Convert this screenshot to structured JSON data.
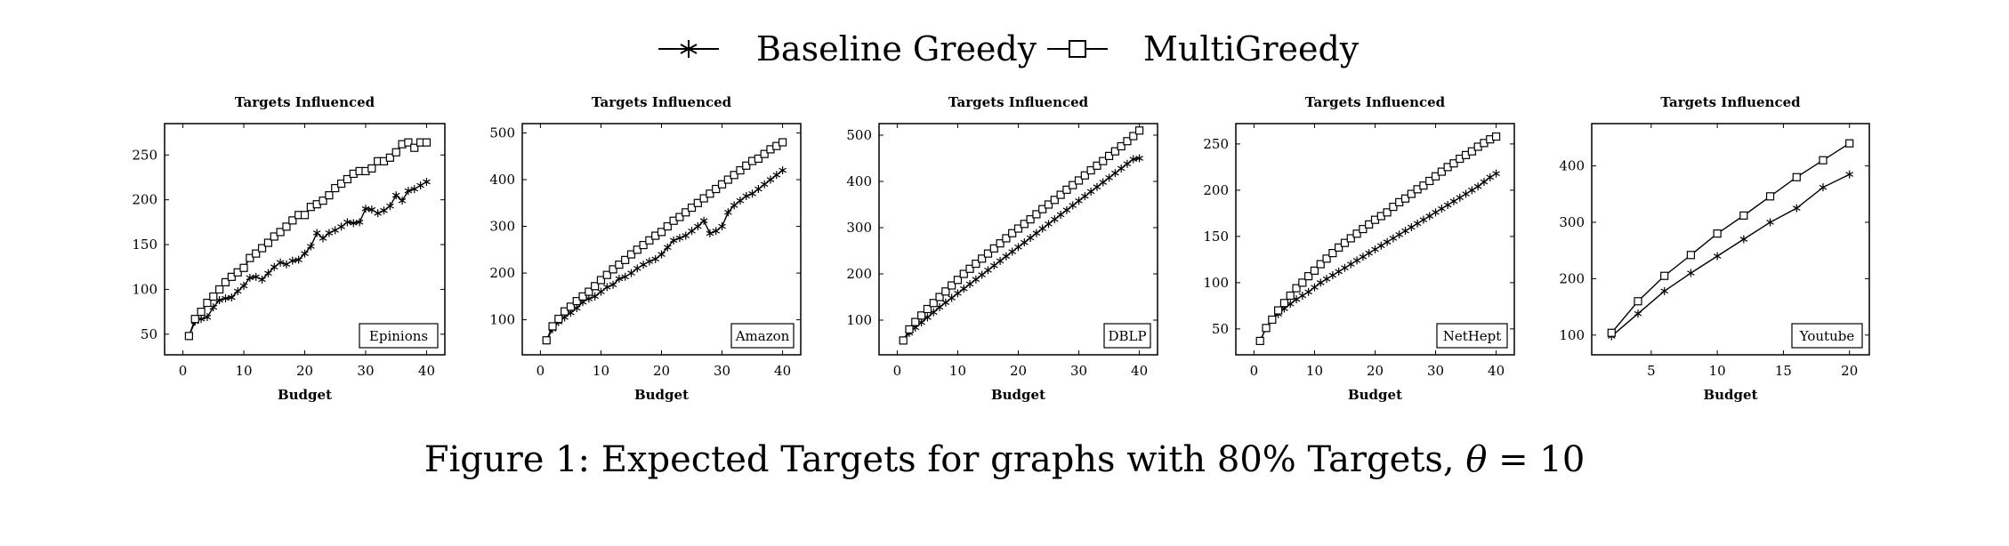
{
  "legend": {
    "entries": [
      {
        "label": "Baseline Greedy",
        "marker": "star"
      },
      {
        "label": "MultiGreedy",
        "marker": "square"
      }
    ]
  },
  "caption": {
    "prefix": "Figure 1: Expected Targets for graphs with 80% Targets, ",
    "symbol": "θ",
    "suffix": " = 10"
  },
  "chart_data": [
    {
      "type": "line",
      "title": "Targets Influenced",
      "xlabel": "Budget",
      "ylabel": "",
      "box_label": "Epinions",
      "xlim": [
        -3,
        43
      ],
      "ylim": [
        27,
        285
      ],
      "xticks": [
        0,
        10,
        20,
        30,
        40
      ],
      "yticks": [
        50,
        100,
        150,
        200,
        250
      ],
      "grid": false,
      "x": [
        1,
        2,
        3,
        4,
        5,
        6,
        7,
        8,
        9,
        10,
        11,
        12,
        13,
        14,
        15,
        16,
        17,
        18,
        19,
        20,
        21,
        22,
        23,
        24,
        25,
        26,
        27,
        28,
        29,
        30,
        31,
        32,
        33,
        34,
        35,
        36,
        37,
        38,
        39,
        40
      ],
      "series": [
        {
          "name": "Baseline Greedy",
          "marker": "star",
          "values": [
            48,
            64,
            67,
            69,
            80,
            88,
            90,
            91,
            98,
            104,
            113,
            114,
            111,
            118,
            125,
            130,
            128,
            132,
            133,
            140,
            148,
            163,
            157,
            163,
            166,
            170,
            175,
            174,
            175,
            190,
            189,
            185,
            188,
            193,
            205,
            199,
            210,
            212,
            216,
            220
          ]
        },
        {
          "name": "MultiGreedy",
          "marker": "square",
          "values": [
            48,
            67,
            75,
            85,
            92,
            100,
            108,
            114,
            119,
            124,
            135,
            140,
            146,
            152,
            159,
            164,
            170,
            177,
            183,
            183,
            192,
            195,
            199,
            205,
            213,
            218,
            223,
            229,
            232,
            232,
            235,
            243,
            243,
            247,
            253,
            262,
            264,
            258,
            264,
            264
          ]
        }
      ]
    },
    {
      "type": "line",
      "title": "Targets Influenced",
      "xlabel": "Budget",
      "ylabel": "",
      "box_label": "Amazon",
      "xlim": [
        -3,
        43
      ],
      "ylim": [
        25,
        520
      ],
      "xticks": [
        0,
        10,
        20,
        30,
        40
      ],
      "yticks": [
        100,
        200,
        300,
        400,
        500
      ],
      "grid": false,
      "x": [
        1,
        2,
        3,
        4,
        5,
        6,
        7,
        8,
        9,
        10,
        11,
        12,
        13,
        14,
        15,
        16,
        17,
        18,
        19,
        20,
        21,
        22,
        23,
        24,
        25,
        26,
        27,
        28,
        29,
        30,
        31,
        32,
        33,
        34,
        35,
        36,
        37,
        38,
        39,
        40
      ],
      "series": [
        {
          "name": "Baseline Greedy",
          "marker": "star",
          "values": [
            56,
            80,
            95,
            105,
            115,
            125,
            138,
            145,
            150,
            160,
            170,
            175,
            188,
            192,
            200,
            210,
            218,
            225,
            230,
            240,
            255,
            270,
            275,
            280,
            290,
            300,
            312,
            285,
            290,
            300,
            330,
            345,
            355,
            365,
            370,
            380,
            390,
            400,
            410,
            420
          ]
        },
        {
          "name": "MultiGreedy",
          "marker": "square",
          "values": [
            56,
            86,
            102,
            118,
            128,
            140,
            150,
            160,
            172,
            185,
            196,
            208,
            218,
            228,
            240,
            250,
            260,
            270,
            280,
            288,
            300,
            312,
            320,
            330,
            340,
            350,
            360,
            370,
            380,
            390,
            400,
            410,
            420,
            430,
            440,
            445,
            455,
            465,
            472,
            480
          ]
        }
      ]
    },
    {
      "type": "line",
      "title": "Targets Influenced",
      "xlabel": "Budget",
      "ylabel": "",
      "box_label": "DBLP",
      "xlim": [
        -3,
        43
      ],
      "ylim": [
        25,
        525
      ],
      "xticks": [
        0,
        10,
        20,
        30,
        40
      ],
      "yticks": [
        100,
        200,
        300,
        400,
        500
      ],
      "grid": false,
      "x": [
        1,
        2,
        3,
        4,
        5,
        6,
        7,
        8,
        9,
        10,
        11,
        12,
        13,
        14,
        15,
        16,
        17,
        18,
        19,
        20,
        21,
        22,
        23,
        24,
        25,
        26,
        27,
        28,
        29,
        30,
        31,
        32,
        33,
        34,
        35,
        36,
        37,
        38,
        39,
        40
      ],
      "series": [
        {
          "name": "Baseline Greedy",
          "marker": "star",
          "values": [
            56,
            72,
            84,
            95,
            106,
            117,
            128,
            138,
            148,
            158,
            168,
            178,
            188,
            198,
            208,
            218,
            228,
            238,
            248,
            258,
            268,
            278,
            288,
            298,
            308,
            318,
            328,
            338,
            348,
            358,
            368,
            378,
            388,
            398,
            408,
            418,
            428,
            438,
            448,
            450
          ]
        },
        {
          "name": "MultiGreedy",
          "marker": "square",
          "values": [
            56,
            80,
            96,
            110,
            124,
            137,
            150,
            162,
            175,
            187,
            200,
            211,
            222,
            233,
            244,
            255,
            266,
            277,
            288,
            298,
            308,
            318,
            329,
            340,
            350,
            360,
            371,
            382,
            392,
            402,
            413,
            424,
            434,
            444,
            455,
            465,
            476,
            487,
            498,
            510
          ]
        }
      ]
    },
    {
      "type": "line",
      "title": "Targets Influenced",
      "xlabel": "Budget",
      "ylabel": "",
      "box_label": "NetHept",
      "xlim": [
        -3,
        43
      ],
      "ylim": [
        22,
        272
      ],
      "xticks": [
        0,
        10,
        20,
        30,
        40
      ],
      "yticks": [
        50,
        100,
        150,
        200,
        250
      ],
      "grid": false,
      "x": [
        1,
        2,
        3,
        4,
        5,
        6,
        7,
        8,
        9,
        10,
        11,
        12,
        13,
        14,
        15,
        16,
        17,
        18,
        19,
        20,
        21,
        22,
        23,
        24,
        25,
        26,
        27,
        28,
        29,
        30,
        31,
        32,
        33,
        34,
        35,
        36,
        37,
        38,
        39,
        40
      ],
      "series": [
        {
          "name": "Baseline Greedy",
          "marker": "star",
          "values": [
            37,
            51,
            60,
            66,
            72,
            77,
            82,
            86,
            90,
            95,
            100,
            104,
            108,
            112,
            116,
            120,
            124,
            128,
            132,
            136,
            140,
            144,
            148,
            152,
            156,
            160,
            164,
            168,
            172,
            176,
            180,
            184,
            188,
            192,
            196,
            200,
            204,
            209,
            214,
            218
          ]
        },
        {
          "name": "MultiGreedy",
          "marker": "square",
          "values": [
            37,
            51,
            60,
            70,
            78,
            86,
            94,
            100,
            107,
            113,
            120,
            126,
            132,
            138,
            143,
            148,
            153,
            158,
            163,
            168,
            172,
            176,
            182,
            187,
            191,
            196,
            201,
            205,
            210,
            215,
            220,
            225,
            229,
            234,
            238,
            242,
            247,
            251,
            255,
            258
          ]
        }
      ]
    },
    {
      "type": "line",
      "title": "Targets Influenced",
      "xlabel": "Budget",
      "ylabel": "",
      "box_label": "Youtube",
      "xlim": [
        0.5,
        21.5
      ],
      "ylim": [
        65,
        475
      ],
      "xticks": [
        5,
        10,
        15,
        20
      ],
      "yticks": [
        100,
        200,
        300,
        400
      ],
      "grid": false,
      "x": [
        2,
        4,
        6,
        8,
        10,
        12,
        14,
        16,
        18,
        20
      ],
      "series": [
        {
          "name": "Baseline Greedy",
          "marker": "star",
          "values": [
            98,
            138,
            178,
            210,
            240,
            270,
            300,
            325,
            362,
            385
          ]
        },
        {
          "name": "MultiGreedy",
          "marker": "square",
          "values": [
            104,
            160,
            205,
            242,
            280,
            312,
            346,
            380,
            410,
            440
          ]
        }
      ]
    }
  ]
}
